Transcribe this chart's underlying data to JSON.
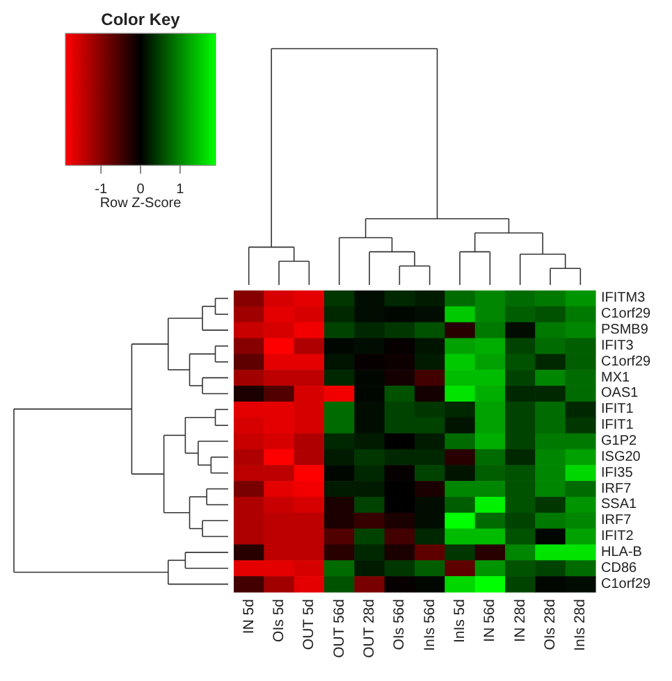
{
  "chart_data": {
    "type": "heatmap",
    "legend_title": "Color Key",
    "clabel": "Row Z-Score",
    "categories": [
      "IN 5d",
      "OIs 5d",
      "OUT 5d",
      "OUT 56d",
      "OUT 28d",
      "OIs 56d",
      "InIs 56d",
      "InIs 5d",
      "IN 56d",
      "IN 28d",
      "OIs 28d",
      "InIs 28d"
    ],
    "y_categories": [
      "IFITM3",
      "C1orf29",
      "PSMB9",
      "IFIT3",
      "C1orf29",
      "MX1",
      "OAS1",
      "IFIT1",
      "IFIT1",
      "G1P2",
      "ISG20",
      "IFI35",
      "IRF7",
      "SSA1",
      "IRF7",
      "IFIT2",
      "HLA-B",
      "CD86",
      "C1orf29"
    ],
    "cells": [
      [
        -1.0,
        -1.6,
        -1.7,
        0.4,
        0.1,
        0.3,
        0.2,
        0.8,
        1.0,
        0.8,
        0.9,
        1.1
      ],
      [
        -1.2,
        -1.7,
        -1.6,
        0.3,
        0.1,
        0.05,
        0.1,
        1.5,
        1.0,
        0.7,
        0.6,
        0.9
      ],
      [
        -1.5,
        -1.6,
        -1.8,
        0.5,
        0.3,
        0.4,
        0.6,
        -0.3,
        0.9,
        0.1,
        0.9,
        1.0
      ],
      [
        -1.0,
        -1.9,
        -1.3,
        0.05,
        0.1,
        -0.05,
        0.15,
        1.2,
        1.3,
        0.5,
        0.8,
        0.7
      ],
      [
        -0.7,
        -1.7,
        -1.7,
        0.15,
        -0.05,
        -0.1,
        0.2,
        1.5,
        1.2,
        0.6,
        0.3,
        0.7
      ],
      [
        -1.2,
        -1.4,
        -1.4,
        0.3,
        0.05,
        -0.15,
        -0.5,
        1.4,
        1.4,
        0.5,
        1.0,
        0.8
      ],
      [
        -0.2,
        -0.6,
        -1.6,
        -1.8,
        0.05,
        0.6,
        -0.15,
        1.7,
        1.3,
        0.3,
        0.3,
        0.8
      ],
      [
        -1.7,
        -1.7,
        -1.6,
        0.8,
        0.1,
        0.5,
        0.4,
        0.3,
        1.2,
        0.5,
        0.8,
        0.3
      ],
      [
        -1.6,
        -1.7,
        -1.6,
        0.8,
        0.1,
        0.5,
        0.5,
        0.15,
        1.2,
        0.5,
        0.8,
        0.4
      ],
      [
        -1.5,
        -1.6,
        -1.3,
        0.3,
        0.2,
        0.0,
        0.2,
        0.8,
        1.3,
        0.5,
        0.9,
        0.9
      ],
      [
        -1.3,
        -1.9,
        -1.3,
        0.2,
        0.4,
        0.3,
        0.3,
        -0.3,
        0.8,
        0.3,
        1.0,
        1.2
      ],
      [
        -1.4,
        -1.4,
        -1.9,
        0.05,
        0.3,
        -0.05,
        0.5,
        0.15,
        0.7,
        0.6,
        1.0,
        1.6
      ],
      [
        -0.9,
        -1.7,
        -1.8,
        0.2,
        0.2,
        0.0,
        -0.2,
        1.0,
        1.0,
        0.6,
        1.0,
        0.8
      ],
      [
        -1.3,
        -1.5,
        -1.6,
        -0.2,
        0.5,
        0.0,
        0.1,
        0.7,
        1.8,
        0.6,
        0.4,
        1.1
      ],
      [
        -1.3,
        -1.4,
        -1.4,
        -0.2,
        -0.4,
        -0.2,
        0.1,
        1.9,
        0.8,
        0.5,
        0.9,
        1.0
      ],
      [
        -1.3,
        -1.4,
        -1.4,
        -0.6,
        0.5,
        -0.5,
        0.3,
        1.4,
        1.4,
        0.6,
        0.05,
        1.2
      ],
      [
        -0.3,
        -1.4,
        -1.4,
        -0.3,
        0.3,
        -0.2,
        -0.7,
        0.4,
        -0.3,
        1.0,
        1.7,
        1.7
      ],
      [
        -1.7,
        -1.7,
        -1.6,
        0.8,
        0.2,
        0.4,
        0.7,
        -0.7,
        1.1,
        0.6,
        0.5,
        0.8
      ],
      [
        -0.5,
        -1.2,
        -1.7,
        0.6,
        -0.9,
        -0.05,
        0.05,
        1.6,
        1.9,
        0.5,
        0.05,
        0.1
      ]
    ],
    "clim": [
      -1.9,
      1.9
    ],
    "cticks": [
      -1,
      0,
      1
    ]
  }
}
